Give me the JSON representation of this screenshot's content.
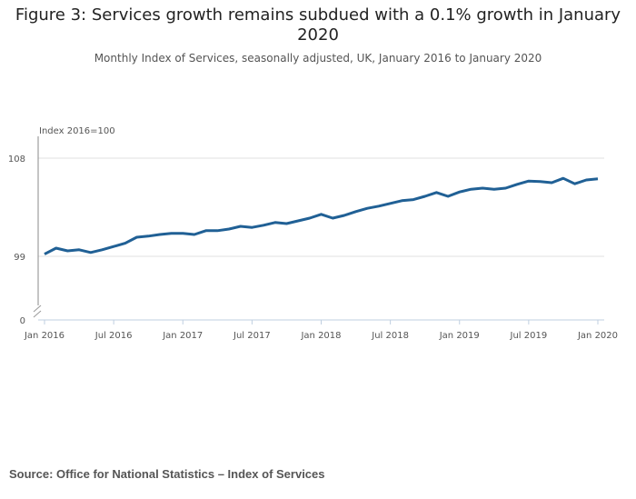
{
  "title": "Figure 3: Services growth remains subdued with a 0.1% growth in January 2020",
  "subtitle": "Monthly Index of Services, seasonally adjusted, UK, January 2016 to January 2020",
  "source": "Source: Office for National Statistics – Index of Services",
  "chart_data": {
    "type": "line",
    "title": "Figure 3: Services growth remains subdued with a 0.1% growth in January 2020",
    "ylabel": "Index 2016=100",
    "xlabel": "",
    "y_ticks": [
      "108",
      "99",
      "0"
    ],
    "y_tick_values": [
      108,
      99,
      0
    ],
    "y_axis_break": true,
    "x_ticks": [
      "Jan 2016",
      "Jul 2016",
      "Jan 2017",
      "Jul 2017",
      "Jan 2018",
      "Jul 2018",
      "Jan 2019",
      "Jul 2019",
      "Jan 2020"
    ],
    "grid": true,
    "color": "#206095",
    "x_start": "2016-01",
    "x_end": "2020-01",
    "values": [
      99.2,
      99.75,
      99.5,
      99.6,
      99.35,
      99.6,
      99.9,
      100.2,
      100.75,
      100.85,
      101.0,
      101.1,
      101.1,
      101.0,
      101.35,
      101.35,
      101.5,
      101.75,
      101.65,
      101.85,
      102.1,
      102.0,
      102.25,
      102.5,
      102.85,
      102.5,
      102.75,
      103.1,
      103.4,
      103.6,
      103.85,
      104.1,
      104.2,
      104.5,
      104.85,
      104.5,
      104.9,
      105.15,
      105.25,
      105.15,
      105.25,
      105.6,
      105.9,
      105.85,
      105.75,
      106.15,
      105.65,
      106.0,
      106.1
    ]
  }
}
